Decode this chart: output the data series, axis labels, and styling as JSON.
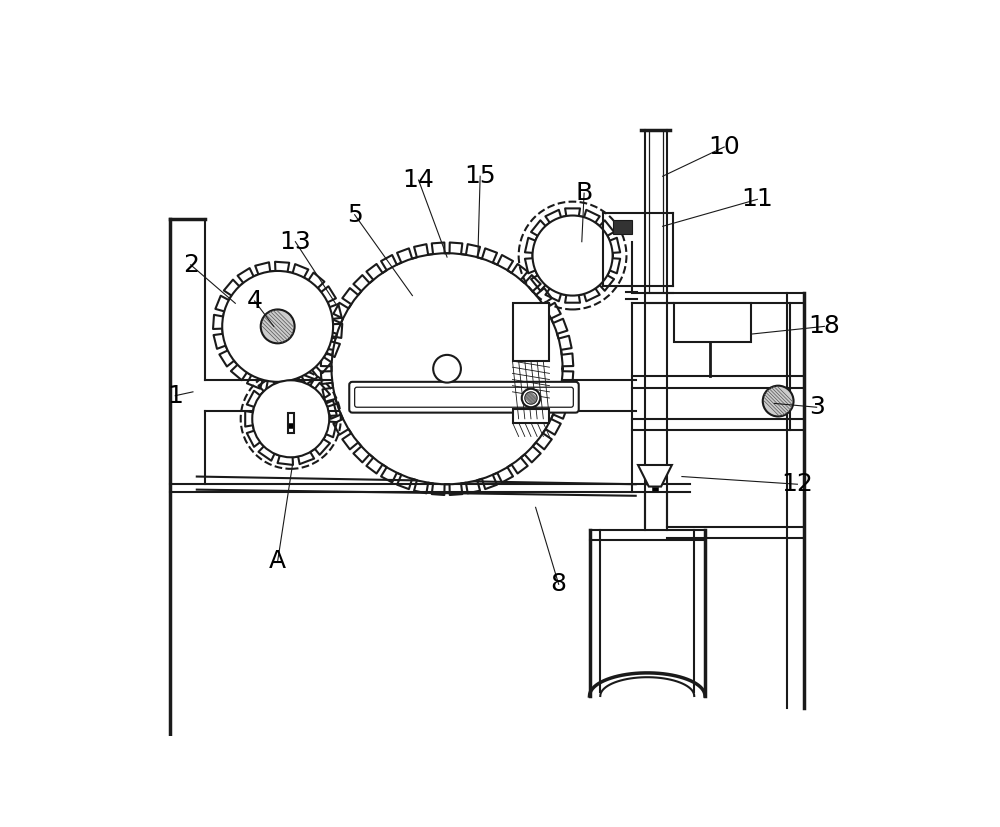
{
  "bg_color": "#ffffff",
  "lc": "#1a1a1a",
  "lw": 1.5,
  "lw_thick": 2.5,
  "lw_thin": 0.9,
  "font_size": 18,
  "labels": [
    [
      "1",
      62,
      385,
      85,
      380
    ],
    [
      "2",
      82,
      215,
      140,
      265
    ],
    [
      "4",
      165,
      262,
      190,
      295
    ],
    [
      "5",
      295,
      150,
      370,
      255
    ],
    [
      "13",
      218,
      185,
      270,
      265
    ],
    [
      "14",
      378,
      105,
      415,
      205
    ],
    [
      "15",
      458,
      100,
      455,
      205
    ],
    [
      "B",
      593,
      122,
      590,
      185
    ],
    [
      "10",
      775,
      62,
      695,
      100
    ],
    [
      "11",
      818,
      130,
      695,
      165
    ],
    [
      "18",
      905,
      295,
      810,
      305
    ],
    [
      "3",
      895,
      400,
      840,
      395
    ],
    [
      "12",
      870,
      500,
      720,
      490
    ],
    [
      "8",
      560,
      630,
      530,
      530
    ],
    [
      "A",
      195,
      600,
      215,
      470
    ]
  ]
}
